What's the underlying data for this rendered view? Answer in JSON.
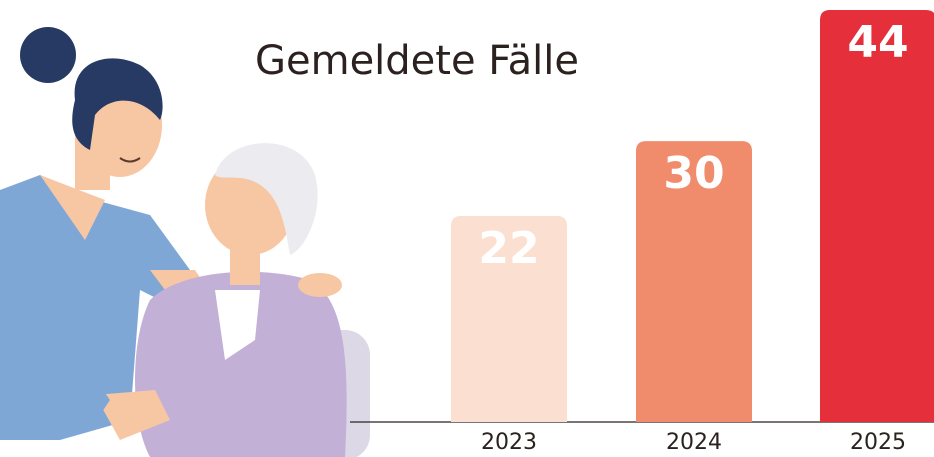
{
  "chart_data": {
    "type": "bar",
    "title": "Gemeldete Fälle",
    "categories": [
      "2023",
      "2024",
      "2025"
    ],
    "values": [
      22,
      30,
      44
    ],
    "colors": [
      "#fbdfd0",
      "#f08b6c",
      "#e5303c"
    ]
  }
}
